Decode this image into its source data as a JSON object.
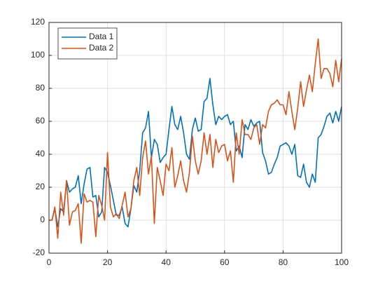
{
  "chart_data": {
    "type": "line",
    "x": [
      0,
      1,
      2,
      3,
      4,
      5,
      6,
      7,
      8,
      9,
      10,
      11,
      12,
      13,
      14,
      15,
      16,
      17,
      18,
      19,
      20,
      21,
      22,
      23,
      24,
      25,
      26,
      27,
      28,
      29,
      30,
      31,
      32,
      33,
      34,
      35,
      36,
      37,
      38,
      39,
      40,
      41,
      42,
      43,
      44,
      45,
      46,
      47,
      48,
      49,
      50,
      51,
      52,
      53,
      54,
      55,
      56,
      57,
      58,
      59,
      60,
      61,
      62,
      63,
      64,
      65,
      66,
      67,
      68,
      69,
      70,
      71,
      72,
      73,
      74,
      75,
      76,
      77,
      78,
      79,
      80,
      81,
      82,
      83,
      84,
      85,
      86,
      87,
      88,
      89,
      90,
      91,
      92,
      93,
      94,
      95,
      96,
      97,
      98,
      99,
      100
    ],
    "series": [
      {
        "name": "Data 1",
        "color": "#0072bd",
        "values": [
          0,
          0,
          7,
          -4,
          7,
          5,
          24,
          17,
          19,
          20,
          27,
          10,
          22,
          31,
          32,
          14,
          15,
          2,
          5,
          32,
          29,
          21,
          12,
          3,
          3,
          8,
          -2,
          -4,
          7,
          21,
          17,
          30,
          53,
          56,
          66,
          38,
          49,
          46,
          35,
          38,
          40,
          55,
          69,
          58,
          55,
          63,
          53,
          40,
          37,
          55,
          62,
          54,
          55,
          72,
          74,
          86,
          70,
          58,
          63,
          61,
          63,
          64,
          58,
          60,
          42,
          45,
          38,
          58,
          55,
          61,
          57,
          59,
          60,
          41,
          36,
          28,
          29,
          34,
          38,
          45,
          46,
          47,
          45,
          40,
          46,
          27,
          26,
          34,
          23,
          20,
          28,
          23,
          50,
          52,
          57,
          63,
          65,
          59,
          66,
          60,
          69
        ]
      },
      {
        "name": "Data 2",
        "color": "#d95319",
        "values": [
          0,
          0,
          8,
          -11,
          17,
          3,
          24,
          -3,
          5,
          6,
          10,
          -14,
          16,
          11,
          12,
          11,
          -10,
          15,
          9,
          0,
          41,
          8,
          2,
          4,
          1,
          9,
          17,
          2,
          7,
          24,
          32,
          15,
          38,
          48,
          28,
          39,
          -2,
          32,
          24,
          15,
          34,
          30,
          44,
          20,
          27,
          36,
          24,
          17,
          29,
          51,
          36,
          28,
          36,
          53,
          40,
          52,
          32,
          49,
          41,
          45,
          46,
          36,
          42,
          23,
          53,
          40,
          61,
          52,
          52,
          49,
          56,
          58,
          46,
          58,
          56,
          66,
          70,
          71,
          73,
          70,
          70,
          64,
          78,
          66,
          55,
          68,
          84,
          69,
          79,
          88,
          78,
          95,
          110,
          86,
          92,
          92,
          89,
          81,
          97,
          84,
          98
        ]
      }
    ],
    "xlim": [
      0,
      100
    ],
    "xticks": [
      0,
      20,
      40,
      60,
      80,
      100
    ],
    "ylim": [
      -20,
      120
    ],
    "yticks": [
      -20,
      0,
      20,
      40,
      60,
      80,
      100,
      120
    ],
    "grid": true,
    "legend": "northwest"
  }
}
